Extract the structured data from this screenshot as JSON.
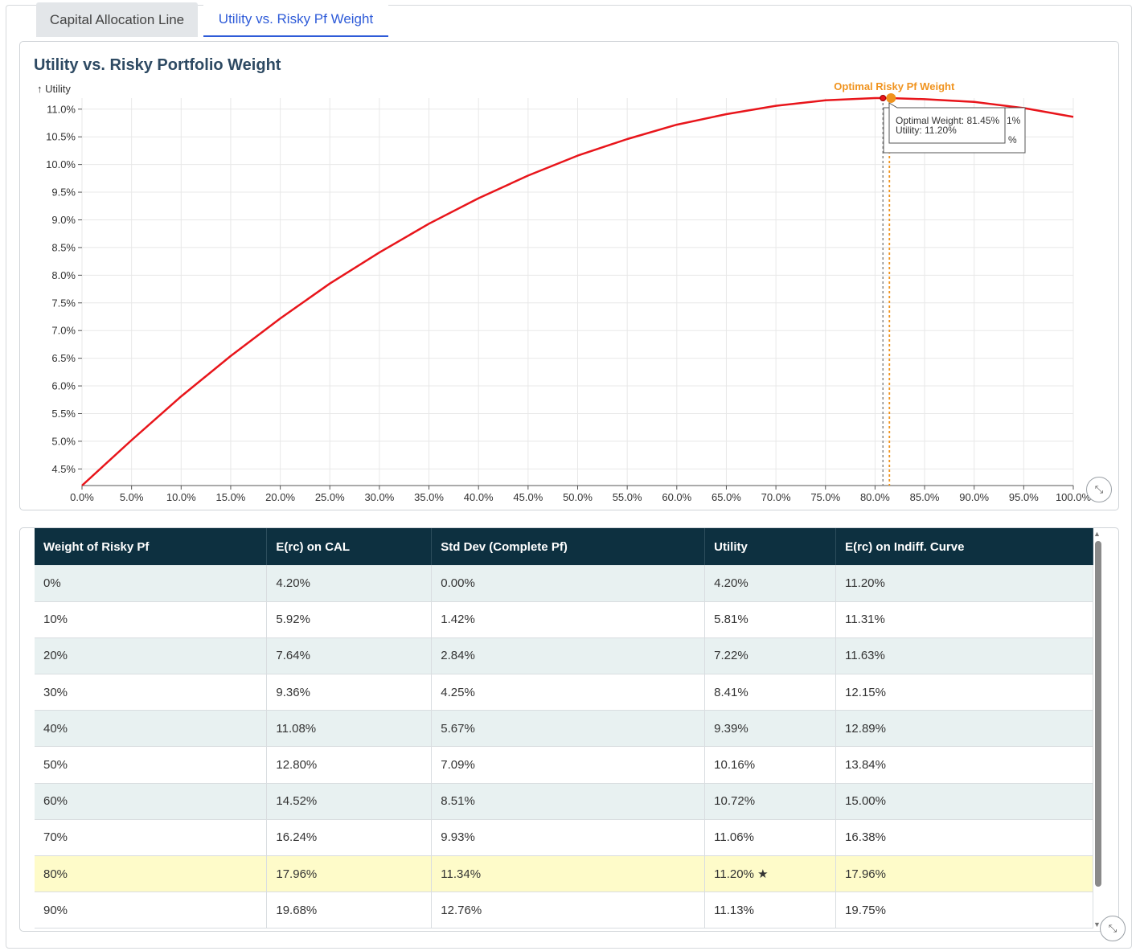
{
  "tabs": [
    {
      "label": "Capital Allocation Line",
      "active": false
    },
    {
      "label": "Utility vs. Risky Pf Weight",
      "active": true
    }
  ],
  "chart_data": {
    "type": "line",
    "title": "Utility vs. Risky Portfolio Weight",
    "ylabel": "↑ Utility",
    "xlabel": "",
    "xlim": [
      0,
      100
    ],
    "ylim": [
      4.2,
      11.2
    ],
    "x_ticks": [
      "0.0%",
      "5.0%",
      "10.0%",
      "15.0%",
      "20.0%",
      "25.0%",
      "30.0%",
      "35.0%",
      "40.0%",
      "45.0%",
      "50.0%",
      "55.0%",
      "60.0%",
      "65.0%",
      "70.0%",
      "75.0%",
      "80.0%",
      "85.0%",
      "90.0%",
      "95.0%",
      "100.0%"
    ],
    "y_ticks": [
      "4.5%",
      "5.0%",
      "5.5%",
      "6.0%",
      "6.5%",
      "7.0%",
      "7.5%",
      "8.0%",
      "8.5%",
      "9.0%",
      "9.5%",
      "10.0%",
      "10.5%",
      "11.0%"
    ],
    "grid": true,
    "series": [
      {
        "values_x": [
          0,
          5,
          10,
          15,
          20,
          25,
          30,
          35,
          40,
          45,
          50,
          55,
          60,
          65,
          70,
          75,
          80,
          81.45,
          85,
          90,
          95,
          100
        ],
        "values_y": [
          4.2,
          5.02,
          5.81,
          6.54,
          7.22,
          7.85,
          8.41,
          8.93,
          9.39,
          9.8,
          10.16,
          10.46,
          10.72,
          10.91,
          11.06,
          11.16,
          11.2,
          11.2,
          11.18,
          11.13,
          11.02,
          10.86
        ],
        "color": "#e8151b"
      }
    ],
    "annotation": {
      "label": "Optimal Risky Pf Weight",
      "x": 81.45,
      "y": 11.2,
      "color": "#f0931e"
    },
    "hover_x": 80.8,
    "tooltip": {
      "line1": "Optimal Weight: 81.45%",
      "line2": "Utility: 11.20%",
      "behind_frag1": "1%",
      "behind_frag2": "%"
    }
  },
  "table": {
    "headers": [
      "Weight of Risky Pf",
      "E(rc) on CAL",
      "Std Dev (Complete Pf)",
      "Utility",
      "E(rc) on Indiff. Curve"
    ],
    "rows": [
      [
        "0%",
        "4.20%",
        "0.00%",
        "4.20%",
        "11.20%"
      ],
      [
        "10%",
        "5.92%",
        "1.42%",
        "5.81%",
        "11.31%"
      ],
      [
        "20%",
        "7.64%",
        "2.84%",
        "7.22%",
        "11.63%"
      ],
      [
        "30%",
        "9.36%",
        "4.25%",
        "8.41%",
        "12.15%"
      ],
      [
        "40%",
        "11.08%",
        "5.67%",
        "9.39%",
        "12.89%"
      ],
      [
        "50%",
        "12.80%",
        "7.09%",
        "10.16%",
        "13.84%"
      ],
      [
        "60%",
        "14.52%",
        "8.51%",
        "10.72%",
        "15.00%"
      ],
      [
        "70%",
        "16.24%",
        "9.93%",
        "11.06%",
        "16.38%"
      ],
      [
        "80%",
        "17.96%",
        "11.34%",
        "11.20% ★",
        "17.96%"
      ],
      [
        "90%",
        "19.68%",
        "12.76%",
        "11.13%",
        "19.75%"
      ]
    ],
    "highlight_row": 8
  },
  "colors": {
    "curve": "#e8151b",
    "optimal": "#f0931e",
    "header_bg": "#0d3040",
    "highlight": "#fefbc9",
    "tab_active": "#2e5bd8"
  },
  "icons": {
    "expand": "expand-icon",
    "scroll_up": "chevron-up-icon",
    "scroll_down": "chevron-down-icon"
  }
}
